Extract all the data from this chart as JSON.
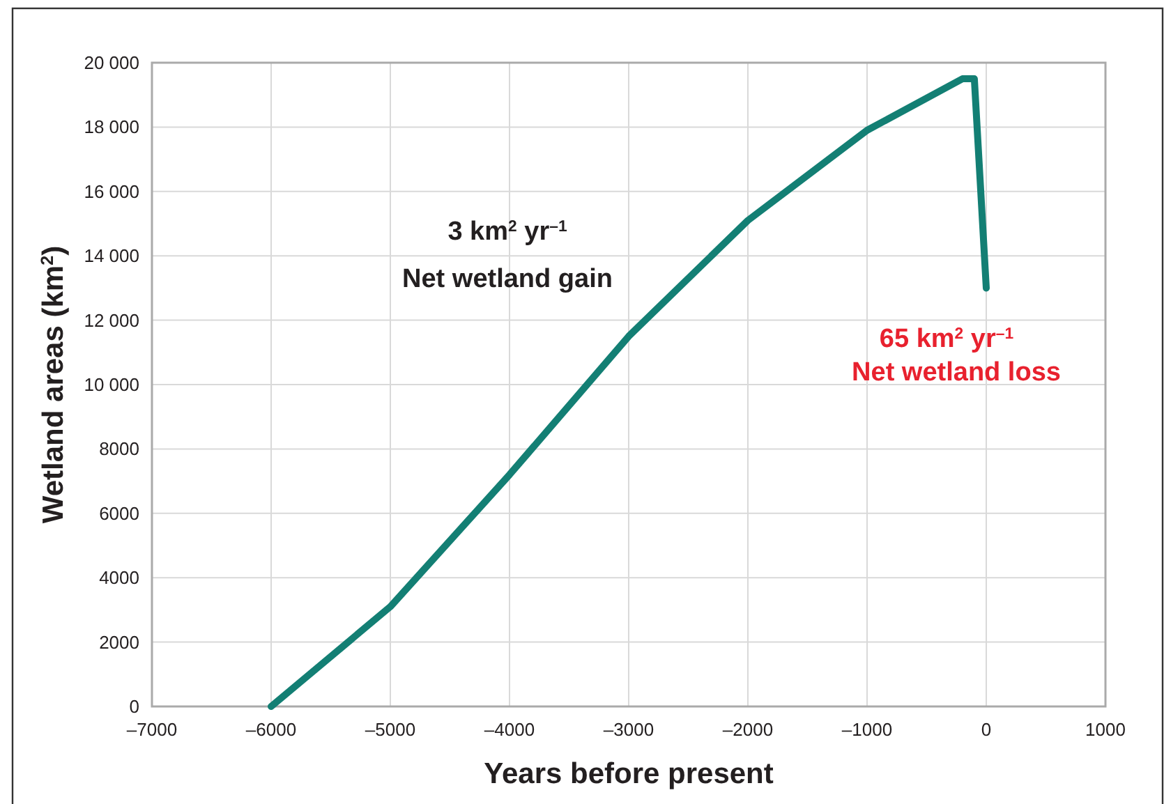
{
  "chart_data": {
    "type": "line",
    "xlabel": "Years before present",
    "ylabel": "Wetland areas (km$^{2}$)",
    "x": [
      -6000,
      -5000,
      -4000,
      -3000,
      -2000,
      -1000,
      -200,
      -100,
      0
    ],
    "series": [
      {
        "color": "#137f74",
        "values": [
          0,
          3100,
          7200,
          11500,
          15100,
          17900,
          19500,
          19500,
          13000
        ]
      }
    ],
    "xlim": [
      -7000,
      1000
    ],
    "xticks": [
      {
        "value": -7000,
        "label": "–7000"
      },
      {
        "value": -6000,
        "label": "–6000"
      },
      {
        "value": -5000,
        "label": "–5000"
      },
      {
        "value": -4000,
        "label": "–4000"
      },
      {
        "value": -3000,
        "label": "–3000"
      },
      {
        "value": -2000,
        "label": "–2000"
      },
      {
        "value": -1000,
        "label": "–1000"
      },
      0,
      1000
    ],
    "ylim": [
      0,
      20000
    ],
    "yticks": [
      0,
      2000,
      4000,
      6000,
      8000,
      {
        "value": 10000,
        "label": "10 000"
      },
      {
        "value": 12000,
        "label": "12 000"
      },
      {
        "value": 14000,
        "label": "14 000"
      },
      {
        "value": 16000,
        "label": "16 000"
      },
      {
        "value": 18000,
        "label": "18 000"
      },
      {
        "value": 20000,
        "label": "20 000"
      }
    ],
    "grid": true,
    "marker": "none",
    "line_style": "solid",
    "annotations": [
      "3 km$^{2}$ yr$^{–1}$",
      "Net wetland gain",
      "65 km$^{2}$ yr$^{–1}$",
      "Net wetland loss"
    ]
  }
}
